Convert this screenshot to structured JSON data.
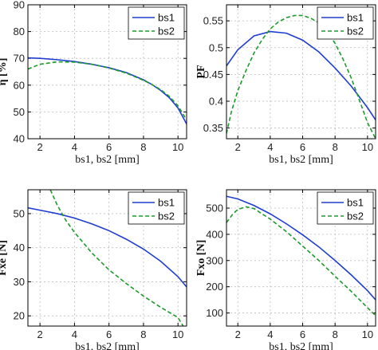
{
  "chart_data": [
    {
      "id": "eta",
      "type": "line",
      "xlabel": "bs1, bs2 [mm]",
      "ylabel": "η [%]",
      "xlim": [
        1.3,
        10.5
      ],
      "ylim": [
        40,
        90
      ],
      "xticks": [
        2,
        4,
        6,
        8,
        10
      ],
      "yticks": [
        40,
        50,
        60,
        70,
        80,
        90
      ],
      "grid": true,
      "legend_position": "top-right",
      "series": [
        {
          "name": "bs1",
          "color": "#1f3ed1",
          "dash": "solid",
          "x": [
            1.3,
            2,
            3,
            4,
            5,
            6,
            7,
            8,
            8.5,
            9,
            9.5,
            10,
            10.5
          ],
          "y": [
            70.2,
            70.0,
            69.5,
            68.8,
            67.8,
            66.5,
            64.7,
            62.0,
            60.2,
            58.0,
            55.3,
            51.5,
            45.5
          ]
        },
        {
          "name": "bs2",
          "color": "#1e9a2a",
          "dash": "dashed",
          "x": [
            1.3,
            2,
            3,
            4,
            5,
            6,
            7,
            8,
            8.5,
            9,
            9.5,
            10,
            10.5
          ],
          "y": [
            66.0,
            67.8,
            68.7,
            68.6,
            67.8,
            66.4,
            64.5,
            61.8,
            60.2,
            58.3,
            55.8,
            52.3,
            47.0
          ]
        }
      ]
    },
    {
      "id": "pf",
      "type": "line",
      "xlabel": "bs1, bs2 [mm]",
      "ylabel": "PF",
      "xlim": [
        1.3,
        10.5
      ],
      "ylim": [
        0.33,
        0.58
      ],
      "xticks": [
        2,
        4,
        6,
        8,
        10
      ],
      "yticks": [
        0.35,
        0.4,
        0.45,
        0.5,
        0.55
      ],
      "grid": true,
      "legend_position": "top-right",
      "series": [
        {
          "name": "bs1",
          "color": "#1f3ed1",
          "dash": "solid",
          "x": [
            1.3,
            2,
            3,
            4,
            5,
            6,
            7,
            8,
            9,
            10,
            10.5
          ],
          "y": [
            0.466,
            0.496,
            0.522,
            0.53,
            0.527,
            0.514,
            0.492,
            0.462,
            0.428,
            0.388,
            0.365
          ]
        },
        {
          "name": "bs2",
          "color": "#1e9a2a",
          "dash": "dashed",
          "x": [
            1.3,
            1.6,
            2,
            2.5,
            3,
            3.5,
            4,
            4.5,
            5,
            5.5,
            6,
            6.5,
            7,
            7.5,
            8,
            8.5,
            9,
            9.5,
            10,
            10.5
          ],
          "y": [
            0.34,
            0.38,
            0.42,
            0.457,
            0.49,
            0.515,
            0.535,
            0.548,
            0.556,
            0.56,
            0.56,
            0.555,
            0.546,
            0.53,
            0.508,
            0.478,
            0.443,
            0.402,
            0.36,
            0.33
          ]
        }
      ]
    },
    {
      "id": "fxe",
      "type": "line",
      "xlabel": "bs1, bs2 [mm]",
      "ylabel": "Fxe [N]",
      "xlim": [
        1.3,
        10.5
      ],
      "ylim": [
        17,
        57
      ],
      "xticks": [
        2,
        4,
        6,
        8,
        10
      ],
      "yticks": [
        20,
        30,
        40,
        50
      ],
      "grid": true,
      "legend_position": "top-right",
      "series": [
        {
          "name": "bs1",
          "color": "#1f3ed1",
          "dash": "solid",
          "x": [
            1.3,
            2,
            3,
            4,
            5,
            6,
            7,
            8,
            9,
            10,
            10.5
          ],
          "y": [
            51.7,
            51.0,
            50.0,
            48.7,
            47.0,
            45.0,
            42.5,
            39.6,
            36.0,
            31.5,
            28.5
          ]
        },
        {
          "name": "bs2",
          "color": "#1e9a2a",
          "dash": "dashed",
          "x": [
            2.6,
            3,
            3.5,
            4,
            5,
            6,
            7,
            8,
            9,
            10,
            10.3
          ],
          "y": [
            57.0,
            52.5,
            48.0,
            44.5,
            38.5,
            33.5,
            29.5,
            25.8,
            22.5,
            19.5,
            17.0
          ]
        }
      ]
    },
    {
      "id": "fxo",
      "type": "line",
      "xlabel": "bs1, bs2 [mm]",
      "ylabel": "Fxo [N]",
      "xlim": [
        1.3,
        10.5
      ],
      "ylim": [
        50,
        570
      ],
      "xticks": [
        2,
        4,
        6,
        8,
        10
      ],
      "yticks": [
        100,
        200,
        300,
        400,
        500
      ],
      "grid": true,
      "legend_position": "top-right",
      "series": [
        {
          "name": "bs1",
          "color": "#1f3ed1",
          "dash": "solid",
          "x": [
            1.3,
            2,
            3,
            4,
            5,
            6,
            7,
            8,
            9,
            10,
            10.5
          ],
          "y": [
            545,
            535,
            510,
            478,
            440,
            398,
            352,
            300,
            245,
            185,
            150
          ]
        },
        {
          "name": "bs2",
          "color": "#1e9a2a",
          "dash": "dashed",
          "x": [
            1.3,
            1.7,
            2,
            2.5,
            3,
            4,
            5,
            6,
            7,
            8,
            9,
            10,
            10.5
          ],
          "y": [
            445,
            478,
            495,
            505,
            498,
            458,
            410,
            355,
            300,
            240,
            182,
            120,
            90
          ]
        }
      ]
    }
  ]
}
